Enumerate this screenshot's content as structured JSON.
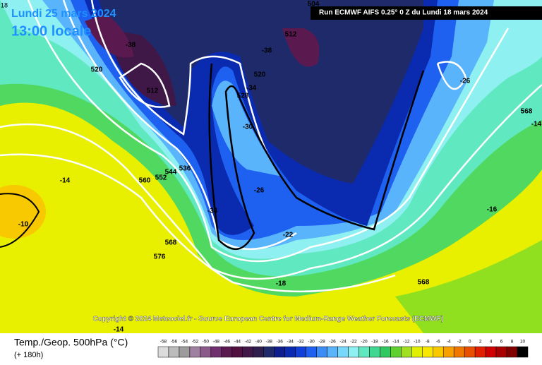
{
  "header": {
    "corner": "18",
    "date": "Lundi 25 mars 2024",
    "time": "13:00 locale",
    "run": "Run ECMWF AIFS 0.25° 0 Z du Lundi 18 mars 2024"
  },
  "map": {
    "labels": [
      "-38",
      "520",
      "512",
      "-38",
      "512",
      "520",
      "528",
      "-34",
      "-30",
      "544",
      "536",
      "552",
      "560",
      "-14",
      "-10",
      "-26",
      "-34",
      "568",
      "576",
      "-22",
      "-18",
      "568",
      "-16",
      "568",
      "-26",
      "504",
      "-14",
      "-14"
    ]
  },
  "copyright": "Copyright © 2024 Meteociel.fr - Source European Centre for Medium-Range Weather Forecasts (ECMWF)",
  "legend": {
    "title": "Temp./Geop. 500hPa (°C)",
    "subtitle": "(+ 180h)",
    "scale": [
      -58,
      -56,
      -54,
      -52,
      -50,
      -48,
      -46,
      -44,
      -42,
      -40,
      -38,
      -36,
      -34,
      -32,
      -30,
      -28,
      -26,
      -24,
      -22,
      -20,
      -18,
      -16,
      -14,
      -12,
      -10,
      -8,
      -6,
      -4,
      -2,
      0,
      2,
      4,
      6,
      8,
      10
    ],
    "colors": [
      "#dcdcdc",
      "#bcbcbc",
      "#9c9c9c",
      "#a080a0",
      "#8a5a8a",
      "#703070",
      "#5a1a50",
      "#501040",
      "#401848",
      "#2e1e4e",
      "#1e2a6a",
      "#0e1e8e",
      "#0a2ab0",
      "#1040d8",
      "#1e60f0",
      "#3c8cf8",
      "#5ab4fc",
      "#78d8fc",
      "#8ef0f0",
      "#60e8c0",
      "#40d890",
      "#30c860",
      "#60d030",
      "#a0e020",
      "#e0f000",
      "#f8e800",
      "#f8c800",
      "#f8a000",
      "#f07800",
      "#e85000",
      "#e02000",
      "#d00000",
      "#a80000",
      "#800000",
      "#000000"
    ]
  }
}
